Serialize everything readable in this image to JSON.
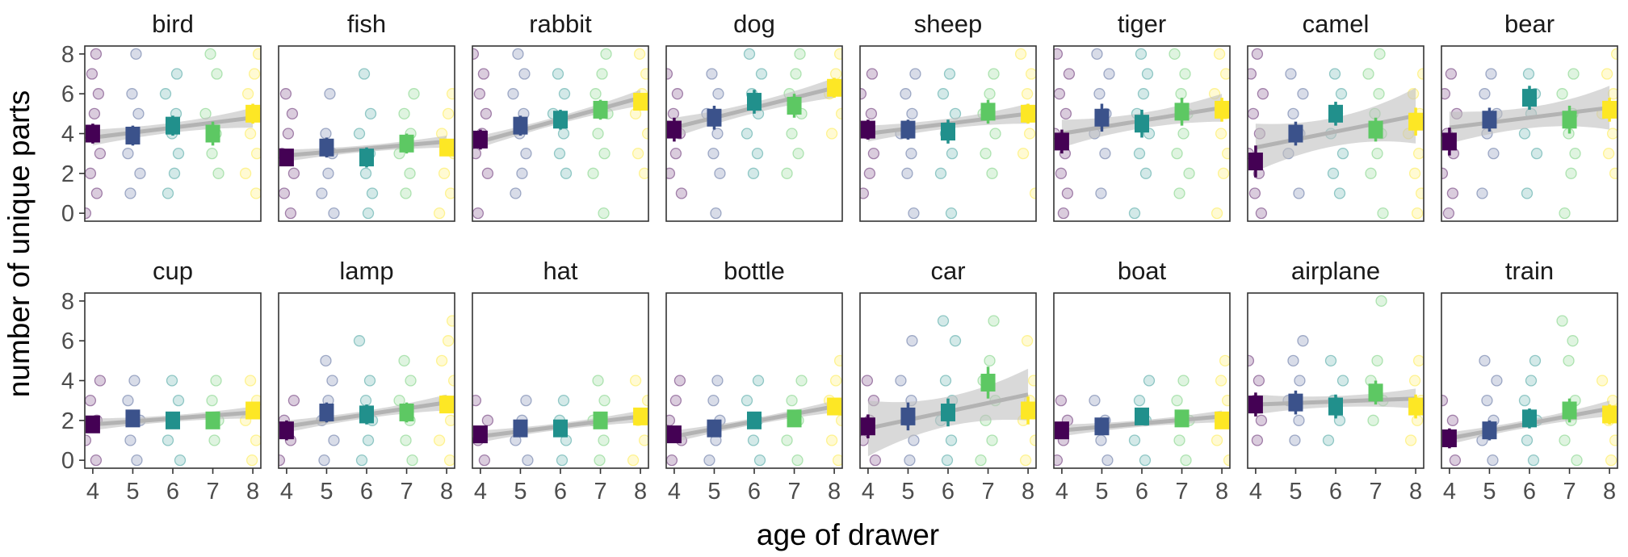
{
  "chart_data": {
    "type": "scatter",
    "description_free": true,
    "xlabel": "age of drawer",
    "ylabel": "number of unique parts",
    "x_ticks": [
      4,
      5,
      6,
      7,
      8
    ],
    "y_ticks": [
      0,
      2,
      4,
      6,
      8
    ],
    "xlim": [
      3.8,
      8.2
    ],
    "ylim": [
      -0.4,
      8.4
    ],
    "colors": {
      "4": "#440154",
      "5": "#3b528b",
      "6": "#21908c",
      "7": "#5dc863",
      "8": "#fde725",
      "trend_line": "#b3b3b3",
      "confidence_band": "#bfbfbf"
    },
    "panels": [
      {
        "name": "bird",
        "means": [
          4.0,
          3.9,
          4.4,
          4.0,
          5.0
        ],
        "err": [
          0.5,
          0.5,
          0.5,
          0.6,
          0.5
        ],
        "trend": [
          3.8,
          4.8
        ],
        "ci": [
          0.4,
          0.5
        ],
        "points": {
          "4": [
            0,
            1,
            2,
            3,
            4,
            5,
            6,
            7,
            8
          ],
          "5": [
            1,
            2,
            3,
            4,
            5,
            6,
            8
          ],
          "6": [
            1,
            2,
            3,
            4,
            5,
            6,
            7
          ],
          "7": [
            2,
            3,
            4,
            5,
            7,
            8
          ],
          "8": [
            1,
            2,
            3,
            4,
            5,
            6,
            7,
            8
          ]
        }
      },
      {
        "name": "fish",
        "means": [
          2.8,
          3.3,
          2.8,
          3.5,
          3.3
        ],
        "err": [
          0.4,
          0.5,
          0.5,
          0.5,
          0.4
        ],
        "trend": [
          2.9,
          3.6
        ],
        "ci": [
          0.3,
          0.3
        ],
        "points": {
          "4": [
            0,
            1,
            2,
            3,
            4,
            5,
            6
          ],
          "5": [
            0,
            1,
            2,
            3,
            4,
            6
          ],
          "6": [
            0,
            1,
            2,
            3,
            4,
            5,
            7
          ],
          "7": [
            1,
            2,
            3,
            4,
            5,
            6
          ],
          "8": [
            0,
            1,
            2,
            3,
            4,
            5,
            6
          ]
        }
      },
      {
        "name": "rabbit",
        "means": [
          3.7,
          4.4,
          4.7,
          5.2,
          5.6
        ],
        "err": [
          0.5,
          0.5,
          0.5,
          0.5,
          0.4
        ],
        "trend": [
          3.6,
          5.8
        ],
        "ci": [
          0.3,
          0.4
        ],
        "points": {
          "4": [
            0,
            2,
            3,
            4,
            5,
            6,
            7,
            8
          ],
          "5": [
            1,
            2,
            3,
            4,
            5,
            6,
            7,
            8
          ],
          "6": [
            2,
            3,
            4,
            5,
            6,
            7
          ],
          "7": [
            0,
            2,
            3,
            4,
            5,
            6,
            7,
            8
          ],
          "8": [
            2,
            3,
            4,
            5,
            6,
            7,
            8
          ]
        }
      },
      {
        "name": "dog",
        "means": [
          4.2,
          4.8,
          5.6,
          5.4,
          6.3
        ],
        "err": [
          0.6,
          0.6,
          0.6,
          0.6,
          0.5
        ],
        "trend": [
          4.3,
          6.3
        ],
        "ci": [
          0.5,
          0.5
        ],
        "points": {
          "4": [
            1,
            2,
            3,
            4,
            5,
            6,
            7
          ],
          "5": [
            0,
            2,
            3,
            4,
            5,
            6,
            7
          ],
          "6": [
            2,
            3,
            4,
            5,
            6,
            7,
            8
          ],
          "7": [
            2,
            3,
            4,
            5,
            6,
            7,
            8
          ],
          "8": [
            4,
            5,
            6,
            7,
            8
          ]
        }
      },
      {
        "name": "sheep",
        "means": [
          4.2,
          4.2,
          4.1,
          5.1,
          5.0
        ],
        "err": [
          0.5,
          0.5,
          0.6,
          0.6,
          0.5
        ],
        "trend": [
          4.0,
          5.0
        ],
        "ci": [
          0.4,
          0.5
        ],
        "points": {
          "4": [
            1,
            2,
            3,
            4,
            5,
            6,
            7
          ],
          "5": [
            0,
            2,
            3,
            4,
            5,
            6,
            7
          ],
          "6": [
            0,
            2,
            3,
            4,
            5,
            6,
            7
          ],
          "7": [
            2,
            3,
            4,
            5,
            6,
            7
          ],
          "8": [
            1,
            3,
            4,
            5,
            6,
            7,
            8
          ]
        }
      },
      {
        "name": "tiger",
        "means": [
          3.6,
          4.8,
          4.5,
          5.1,
          5.2
        ],
        "err": [
          0.6,
          0.7,
          0.7,
          0.7,
          0.6
        ],
        "trend": [
          4.0,
          5.3
        ],
        "ci": [
          0.7,
          0.7
        ],
        "points": {
          "4": [
            0,
            1,
            2,
            3,
            4,
            5,
            6,
            7,
            8
          ],
          "5": [
            1,
            3,
            4,
            5,
            6,
            7,
            8
          ],
          "6": [
            0,
            2,
            3,
            4,
            5,
            6,
            7,
            8
          ],
          "7": [
            1,
            2,
            3,
            4,
            5,
            6,
            7,
            8
          ],
          "8": [
            0,
            2,
            3,
            4,
            5,
            6,
            7,
            8
          ]
        }
      },
      {
        "name": "camel",
        "means": [
          2.6,
          4.0,
          5.0,
          4.2,
          4.6
        ],
        "err": [
          0.8,
          0.6,
          0.6,
          0.6,
          0.7
        ],
        "trend": [
          3.3,
          4.9
        ],
        "ci": [
          1.2,
          1.4
        ],
        "points": {
          "4": [
            0,
            1,
            2,
            3,
            4,
            5,
            6,
            7,
            8
          ],
          "5": [
            1,
            3,
            4,
            5,
            6,
            7
          ],
          "6": [
            1,
            2,
            3,
            4,
            5,
            6,
            7
          ],
          "7": [
            0,
            2,
            3,
            4,
            5,
            6,
            7,
            8
          ],
          "8": [
            0,
            1,
            2,
            3,
            4,
            5,
            6,
            7
          ]
        }
      },
      {
        "name": "bear",
        "means": [
          3.6,
          4.7,
          5.8,
          4.7,
          5.2
        ],
        "err": [
          0.7,
          0.6,
          0.6,
          0.7,
          0.6
        ],
        "trend": [
          4.3,
          5.3
        ],
        "ci": [
          0.8,
          1.1
        ],
        "points": {
          "4": [
            0,
            1,
            2,
            3,
            4,
            5,
            6,
            7
          ],
          "5": [
            1,
            3,
            4,
            5,
            6,
            7
          ],
          "6": [
            1,
            3,
            4,
            5,
            6,
            7
          ],
          "7": [
            0,
            2,
            3,
            4,
            5,
            6,
            7
          ],
          "8": [
            2,
            3,
            4,
            5,
            6,
            7,
            8
          ]
        }
      },
      {
        "name": "cup",
        "means": [
          1.8,
          2.1,
          2.0,
          2.0,
          2.5
        ],
        "err": [
          0.4,
          0.4,
          0.4,
          0.4,
          0.4
        ],
        "trend": [
          1.8,
          2.4
        ],
        "ci": [
          0.3,
          0.3
        ],
        "points": {
          "4": [
            0,
            1,
            2,
            3,
            4
          ],
          "5": [
            0,
            1,
            2,
            3,
            4
          ],
          "6": [
            0,
            1,
            2,
            3,
            4
          ],
          "7": [
            1,
            2,
            3,
            4
          ],
          "8": [
            0,
            1,
            2,
            3,
            4
          ]
        }
      },
      {
        "name": "lamp",
        "means": [
          1.5,
          2.4,
          2.3,
          2.4,
          2.8
        ],
        "err": [
          0.5,
          0.5,
          0.5,
          0.5,
          0.4
        ],
        "trend": [
          1.7,
          2.9
        ],
        "ci": [
          0.3,
          0.4
        ],
        "points": {
          "4": [
            0,
            1,
            2,
            3
          ],
          "5": [
            0,
            1,
            2,
            3,
            4,
            5
          ],
          "6": [
            0,
            1,
            2,
            3,
            4,
            6
          ],
          "7": [
            0,
            1,
            2,
            3,
            4,
            5
          ],
          "8": [
            0,
            1,
            2,
            3,
            4,
            5,
            6,
            7
          ]
        }
      },
      {
        "name": "hat",
        "means": [
          1.3,
          1.6,
          1.6,
          2.0,
          2.2
        ],
        "err": [
          0.4,
          0.4,
          0.4,
          0.4,
          0.4
        ],
        "trend": [
          1.2,
          2.2
        ],
        "ci": [
          0.3,
          0.3
        ],
        "points": {
          "4": [
            0,
            1,
            2,
            3
          ],
          "5": [
            0,
            1,
            2,
            3
          ],
          "6": [
            0,
            1,
            2,
            3
          ],
          "7": [
            0,
            1,
            2,
            3,
            4
          ],
          "8": [
            0,
            1,
            2,
            3,
            4
          ]
        }
      },
      {
        "name": "bottle",
        "means": [
          1.3,
          1.6,
          2.0,
          2.1,
          2.7
        ],
        "err": [
          0.4,
          0.4,
          0.4,
          0.4,
          0.4
        ],
        "trend": [
          1.2,
          2.7
        ],
        "ci": [
          0.3,
          0.3
        ],
        "points": {
          "4": [
            0,
            1,
            2,
            3,
            4
          ],
          "5": [
            0,
            1,
            2,
            3,
            4
          ],
          "6": [
            0,
            1,
            2,
            3,
            4
          ],
          "7": [
            0,
            1,
            2,
            3,
            4
          ],
          "8": [
            0,
            1,
            2,
            3,
            4,
            5
          ]
        }
      },
      {
        "name": "car",
        "means": [
          1.7,
          2.2,
          2.4,
          3.9,
          2.5
        ],
        "err": [
          0.6,
          0.7,
          0.7,
          0.8,
          0.7
        ],
        "trend": [
          1.6,
          3.3
        ],
        "ci": [
          1.4,
          1.3
        ],
        "points": {
          "4": [
            0,
            1,
            2,
            3,
            4
          ],
          "5": [
            0,
            1,
            2,
            3,
            4,
            6
          ],
          "6": [
            0,
            1,
            2,
            3,
            4,
            6,
            7
          ],
          "7": [
            0,
            1,
            2,
            3,
            4,
            5,
            7
          ],
          "8": [
            0,
            1,
            2,
            3,
            4,
            6
          ]
        }
      },
      {
        "name": "boat",
        "means": [
          1.5,
          1.7,
          2.2,
          2.1,
          2.0
        ],
        "err": [
          0.4,
          0.4,
          0.4,
          0.4,
          0.4
        ],
        "trend": [
          1.5,
          2.2
        ],
        "ci": [
          0.3,
          0.3
        ],
        "points": {
          "4": [
            0,
            1,
            2,
            3
          ],
          "5": [
            0,
            1,
            2,
            3
          ],
          "6": [
            0,
            1,
            2,
            3,
            4
          ],
          "7": [
            0,
            1,
            2,
            3,
            4
          ],
          "8": [
            0,
            1,
            2,
            3,
            4,
            5
          ]
        }
      },
      {
        "name": "airplane",
        "means": [
          2.8,
          2.9,
          2.7,
          3.4,
          2.7
        ],
        "err": [
          0.6,
          0.6,
          0.6,
          0.6,
          0.6
        ],
        "trend": [
          2.8,
          3.1
        ],
        "ci": [
          0.5,
          0.5
        ],
        "points": {
          "4": [
            1,
            2,
            3,
            4,
            5
          ],
          "5": [
            1,
            2,
            3,
            4,
            5,
            6
          ],
          "6": [
            1,
            2,
            3,
            4,
            5
          ],
          "7": [
            2,
            3,
            4,
            5,
            8
          ],
          "8": [
            1,
            2,
            3,
            4,
            5
          ]
        }
      },
      {
        "name": "train",
        "means": [
          1.1,
          1.5,
          2.1,
          2.5,
          2.3
        ],
        "err": [
          0.5,
          0.5,
          0.5,
          0.6,
          0.5
        ],
        "trend": [
          1.1,
          2.6
        ],
        "ci": [
          0.3,
          0.4
        ],
        "points": {
          "4": [
            0,
            1,
            2,
            3
          ],
          "5": [
            0,
            1,
            2,
            3,
            4,
            5
          ],
          "6": [
            0,
            1,
            2,
            3,
            4,
            5
          ],
          "7": [
            0,
            1,
            2,
            3,
            5,
            6,
            7
          ],
          "8": [
            0,
            1,
            2,
            3,
            4
          ]
        }
      }
    ]
  }
}
